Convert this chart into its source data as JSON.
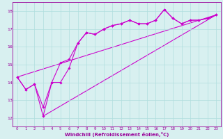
{
  "xlabel": "Windchill (Refroidissement éolien,°C)",
  "bg_color": "#d8f0f0",
  "line_color": "#cc00cc",
  "grid_color": "#b0dede",
  "xlim": [
    -0.5,
    23.5
  ],
  "ylim": [
    11.5,
    18.5
  ],
  "yticks": [
    12,
    13,
    14,
    15,
    16,
    17,
    18
  ],
  "xticks": [
    0,
    1,
    2,
    3,
    4,
    5,
    6,
    7,
    8,
    9,
    10,
    11,
    12,
    13,
    14,
    15,
    16,
    17,
    18,
    19,
    20,
    21,
    22,
    23
  ],
  "line1_x": [
    0,
    1,
    2,
    3,
    4,
    5,
    6,
    7,
    8,
    9,
    10,
    11,
    12,
    13,
    14,
    15,
    16,
    17,
    18,
    19,
    20,
    21,
    22,
    23
  ],
  "line1_y": [
    14.3,
    13.6,
    13.9,
    12.6,
    14.0,
    15.1,
    15.3,
    16.2,
    16.8,
    16.7,
    17.0,
    17.2,
    17.3,
    17.5,
    17.3,
    17.3,
    17.5,
    18.1,
    17.6,
    17.3,
    17.5,
    17.5,
    17.6,
    17.8
  ],
  "line2_x": [
    0,
    1,
    2,
    3,
    4,
    5,
    6,
    7,
    8,
    9,
    10,
    11,
    12,
    13,
    14,
    15,
    16,
    17,
    18,
    19,
    20,
    21,
    22,
    23
  ],
  "line2_y": [
    14.3,
    13.6,
    13.9,
    12.1,
    14.0,
    14.0,
    14.8,
    16.2,
    16.8,
    16.7,
    17.0,
    17.2,
    17.3,
    17.5,
    17.3,
    17.3,
    17.5,
    18.1,
    17.6,
    17.3,
    17.5,
    17.5,
    17.6,
    17.8
  ],
  "line3_x": [
    3,
    23
  ],
  "line3_y": [
    12.1,
    17.8
  ],
  "line4_x": [
    0,
    23
  ],
  "line4_y": [
    14.3,
    17.8
  ],
  "marker": "D",
  "markersize": 1.8,
  "linewidth": 0.8,
  "tick_fontsize": 4.0,
  "xlabel_fontsize": 5.0,
  "xlabel_color": "#990099",
  "tick_color": "#990099",
  "spine_color": "#990099"
}
